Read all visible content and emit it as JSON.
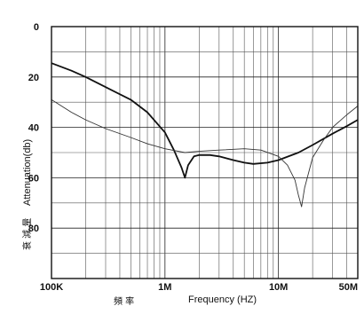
{
  "chart_data": {
    "type": "line",
    "xlabel": "Frequency (HZ)",
    "xlabel_cn": "頻 率",
    "ylabel": "Attenuation(db)",
    "ylabel_cn": "衰 減 量",
    "x_scale": "log",
    "xlim": [
      100000,
      50000000
    ],
    "ylim": [
      0,
      100
    ],
    "y_inverted": true,
    "grid": true,
    "x_ticks": [
      {
        "value": 100000,
        "label": "100K"
      },
      {
        "value": 1000000,
        "label": "1M"
      },
      {
        "value": 10000000,
        "label": "10M"
      },
      {
        "value": 50000000,
        "label": "50M"
      }
    ],
    "y_ticks": [
      {
        "value": 0,
        "label": "0"
      },
      {
        "value": 20,
        "label": "20"
      },
      {
        "value": 40,
        "label": "40"
      },
      {
        "value": 60,
        "label": "60"
      },
      {
        "value": 80,
        "label": "80"
      }
    ],
    "series": [
      {
        "color": "#111111",
        "width": 1.8,
        "x": [
          100000,
          150000,
          200000,
          300000,
          500000,
          700000,
          1000000,
          1200000,
          1400000,
          1500000,
          1600000,
          1800000,
          2000000,
          2500000,
          3000000,
          4000000,
          5000000,
          6000000,
          8000000,
          10000000,
          15000000,
          20000000,
          30000000,
          40000000,
          50000000
        ],
        "y": [
          14.5,
          17.5,
          20,
          24,
          29,
          34,
          42,
          49,
          56,
          60,
          55,
          51.5,
          51,
          51,
          51.5,
          53,
          54,
          54.5,
          54,
          53,
          50,
          47,
          42.5,
          39.5,
          37
        ]
      },
      {
        "color": "#333333",
        "width": 0.9,
        "x": [
          100000,
          150000,
          200000,
          300000,
          500000,
          700000,
          1000000,
          1500000,
          2000000,
          3000000,
          5000000,
          7000000,
          10000000,
          12000000,
          14000000,
          15000000,
          16000000,
          17000000,
          20000000,
          25000000,
          30000000,
          40000000,
          50000000
        ],
        "y": [
          29,
          34,
          37,
          40.5,
          44,
          46.5,
          48.5,
          50,
          49.5,
          49,
          48.5,
          49,
          51.5,
          55,
          61,
          67,
          71.5,
          64,
          52,
          45,
          40,
          35,
          31.5
        ]
      }
    ]
  }
}
